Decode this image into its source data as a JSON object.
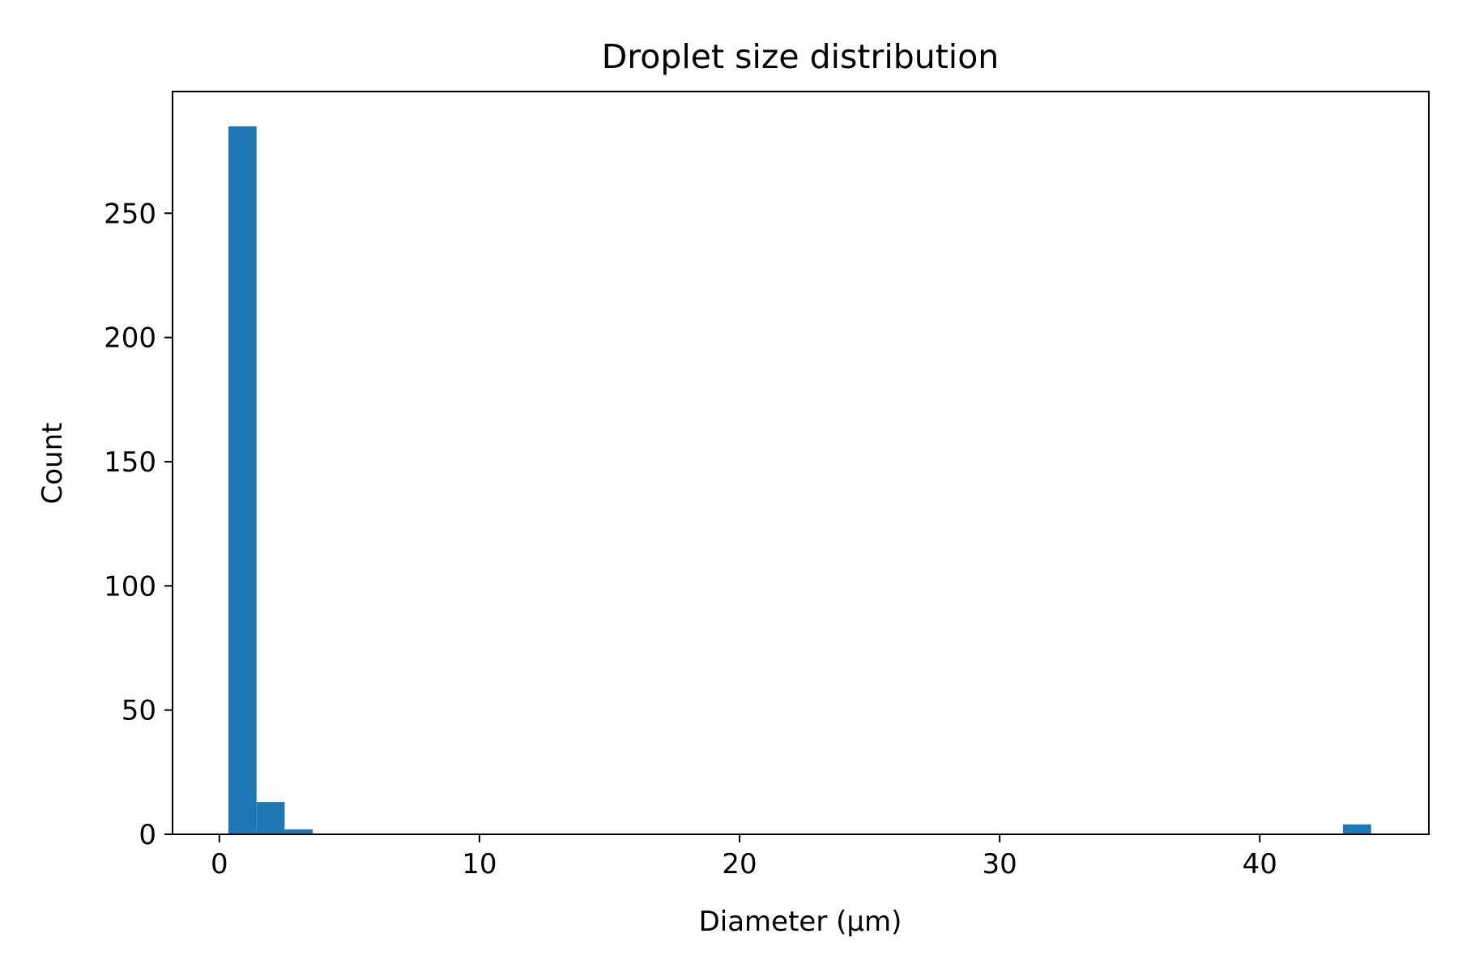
{
  "chart_data": {
    "type": "bar",
    "subtype": "histogram",
    "title": "Droplet size distribution",
    "xlabel": "Diameter (µm)",
    "ylabel": "Count",
    "xlim": [
      -1.8,
      46.5
    ],
    "ylim": [
      0,
      299
    ],
    "xticks": [
      0,
      10,
      20,
      30,
      40
    ],
    "yticks": [
      0,
      50,
      100,
      150,
      200,
      250
    ],
    "grid": false,
    "legend": "none",
    "bar_color": "#1f77b4",
    "bins": [
      {
        "x0": 0.35,
        "x1": 1.43,
        "count": 285
      },
      {
        "x0": 1.43,
        "x1": 2.51,
        "count": 13
      },
      {
        "x0": 2.51,
        "x1": 3.59,
        "count": 2
      },
      {
        "x0": 43.2,
        "x1": 44.28,
        "count": 4
      }
    ]
  }
}
